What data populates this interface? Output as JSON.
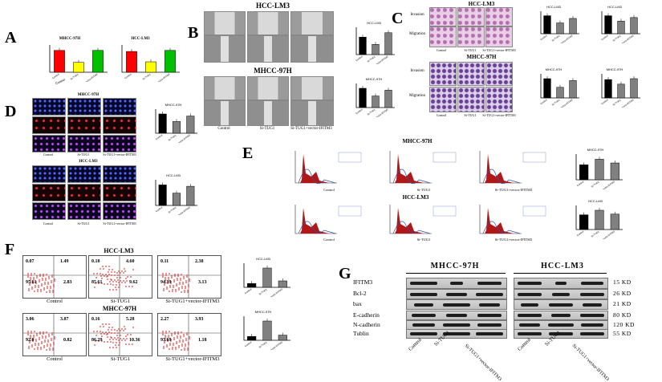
{
  "panels": {
    "A": {
      "label": "A",
      "charts": [
        {
          "title": "MHCC-97H",
          "ylabel": "IFITM3 mRNA expression level",
          "categories": [
            "Control",
            "Si-TUG1",
            "Si-TUG1+vector-IFITM3"
          ]
        },
        {
          "title": "HCC-LM3",
          "ylabel": "IFITM3 mRNA expression level",
          "categories": [
            "Control",
            "Si-TUG1",
            "Si-TUG1+vector-IFITM3"
          ]
        }
      ]
    },
    "B": {
      "label": "B",
      "title1": "HCC-LM3",
      "title2": "MHCC-97H",
      "captions": [
        "Control",
        "Si-TUG1",
        "Si-TUG1+vector-IFITM3"
      ],
      "chart_titles": [
        "HCC-LM3",
        "MHCC-97H"
      ]
    },
    "C": {
      "label": "C",
      "title1": "HCC-LM3",
      "title2": "MHCC-97H",
      "rowlabels": [
        "Invasion",
        "Migration"
      ],
      "captions": [
        "Control",
        "Si-TUG1",
        "Si-TUG1+vector-IFITM3"
      ],
      "chart_titles": [
        "HCC-LM3",
        "HCC-LM3",
        "MHCC-97H",
        "MHCC-97H"
      ],
      "chart_ylabels": [
        "Migration",
        "Invasion",
        "Migration",
        "Invasion"
      ]
    },
    "D": {
      "label": "D",
      "title1": "MHCC-97H",
      "title2": "HCC-LM3",
      "captions": [
        "Control",
        "Si-TUG1",
        "Si-TUG1+vector-IFITM3"
      ],
      "chart_titles": [
        "MHCC-97H",
        "HCC-LM3"
      ]
    },
    "E": {
      "label": "E",
      "title1": "MHCC-97H",
      "title2": "HCC-LM3",
      "captions": [
        "Control",
        "Si-TUG1",
        "Si-TUG1+vector-IFITM3"
      ],
      "chart_titles": [
        "MHCC-97H",
        "HCC-LM3"
      ]
    },
    "F": {
      "label": "F",
      "title1": "HCC-LM3",
      "title2": "MHCC-97H",
      "captions": [
        "Control",
        "Si-TUG1",
        "Si-TUG1+vector-IFITM3"
      ],
      "lm3_quads": [
        [
          "0.07",
          "1.49",
          "95.61",
          "2.83"
        ],
        [
          "0.18",
          "4.60",
          "85.61",
          "9.62"
        ],
        [
          "0.11",
          "2.38",
          "94.39",
          "3.13"
        ]
      ],
      "h97_quads": [
        [
          "3.06",
          "3.87",
          "92.0",
          "0.82"
        ],
        [
          "0.16",
          "5.28",
          "86.29",
          "10.36"
        ],
        [
          "2.27",
          "3.93",
          "93.69",
          "1.18"
        ]
      ],
      "chart_titles": [
        "HCC-LM3",
        "MHCC-97H"
      ]
    },
    "G": {
      "label": "G",
      "header1": "MHCC-97H",
      "header2": "HCC-LM3",
      "proteins": [
        "IFITM3",
        "Bcl-2",
        "bax",
        "E-cadherin",
        "N-cadherin",
        "Tublin"
      ],
      "sizes": [
        "15 KD",
        "26 KD",
        "21 KD",
        "80 KD",
        "120 KD",
        "55 KD"
      ],
      "lanes": [
        "Control",
        "Si-TUG1",
        "Si-TUG1+vector-IFITM3"
      ]
    }
  },
  "chart_data": [
    {
      "type": "bar",
      "title": "MHCC-97H",
      "categories": [
        "Control",
        "Si-TUG1",
        "Si-TUG1+vector-IFITM3"
      ],
      "values": [
        1.0,
        0.45,
        1.0
      ],
      "colors": [
        "#ff0000",
        "#ffff00",
        "#00c000"
      ]
    },
    {
      "type": "bar",
      "title": "HCC-LM3",
      "categories": [
        "Control",
        "Si-TUG1",
        "Si-TUG1+vector-IFITM3"
      ],
      "values": [
        1.0,
        0.5,
        1.05
      ],
      "colors": [
        "#ff0000",
        "#ffff00",
        "#00c000"
      ]
    },
    {
      "type": "bar",
      "title": "HCC-LM3",
      "categories": [
        "Control",
        "Si-TUG1",
        "Si-TUG1+vector-IFITM3"
      ],
      "values": [
        60,
        35,
        75
      ],
      "colors": [
        "#000000",
        "#808080",
        "#808080"
      ]
    },
    {
      "type": "bar",
      "title": "MHCC-97H",
      "categories": [
        "Control",
        "Si-TUG1",
        "Si-TUG1+vector-IFITM3"
      ],
      "values": [
        50,
        30,
        45
      ],
      "colors": [
        "#000000",
        "#808080",
        "#808080"
      ]
    },
    {
      "type": "bar",
      "title": "HCC-LM3",
      "categories": [
        "Control",
        "Si-TUG1",
        "Si-TUG1+vector-IFITM3"
      ],
      "values": [
        100,
        60,
        85
      ],
      "colors": [
        "#000000",
        "#808080",
        "#808080"
      ]
    },
    {
      "type": "bar",
      "title": "HCC-LM3",
      "categories": [
        "Control",
        "Si-TUG1",
        "Si-TUG1+vector-IFITM3"
      ],
      "values": [
        100,
        70,
        90
      ],
      "colors": [
        "#000000",
        "#808080",
        "#808080"
      ]
    },
    {
      "type": "bar",
      "title": "MHCC-97H",
      "categories": [
        "Control",
        "Si-TUG1",
        "Si-TUG1+vector-IFITM3"
      ],
      "values": [
        100,
        55,
        90
      ],
      "colors": [
        "#000000",
        "#808080",
        "#808080"
      ]
    },
    {
      "type": "bar",
      "title": "MHCC-97H",
      "categories": [
        "Control",
        "Si-TUG1",
        "Si-TUG1+vector-IFITM3"
      ],
      "values": [
        100,
        75,
        105
      ],
      "colors": [
        "#000000",
        "#808080",
        "#808080"
      ]
    },
    {
      "type": "bar",
      "title": "MHCC-97H",
      "categories": [
        "Control",
        "Si-TUG1",
        "Si-TUG1+vector-IFITM3"
      ],
      "values": [
        28,
        17,
        25
      ],
      "colors": [
        "#000000",
        "#808080",
        "#808080"
      ]
    },
    {
      "type": "bar",
      "title": "HCC-LM3",
      "categories": [
        "Control",
        "Si-TUG1",
        "Si-TUG1+vector-IFITM3"
      ],
      "values": [
        30,
        18,
        28
      ],
      "colors": [
        "#000000",
        "#808080",
        "#808080"
      ]
    },
    {
      "type": "bar",
      "title": "MHCC-97H",
      "categories": [
        "Control",
        "Si-TUG1",
        "Si-TUG1+vector-IFITM3"
      ],
      "values": [
        40,
        55,
        45
      ],
      "colors": [
        "#000000",
        "#808080",
        "#808080"
      ]
    },
    {
      "type": "bar",
      "title": "HCC-LM3",
      "categories": [
        "Control",
        "Si-TUG1",
        "Si-TUG1+vector-IFITM3"
      ],
      "values": [
        42,
        55,
        44
      ],
      "colors": [
        "#000000",
        "#808080",
        "#808080"
      ]
    },
    {
      "type": "bar",
      "title": "HCC-LM3",
      "categories": [
        "Control",
        "Si-TUG1",
        "Si-TUG1+vector-IFITM3"
      ],
      "values": [
        3,
        15,
        5
      ],
      "colors": [
        "#000000",
        "#808080",
        "#808080"
      ]
    },
    {
      "type": "bar",
      "title": "MHCC-97H",
      "categories": [
        "Control",
        "Si-TUG1",
        "Si-TUG1+vector-IFITM3"
      ],
      "values": [
        3,
        15,
        4
      ],
      "colors": [
        "#000000",
        "#808080",
        "#808080"
      ]
    }
  ]
}
